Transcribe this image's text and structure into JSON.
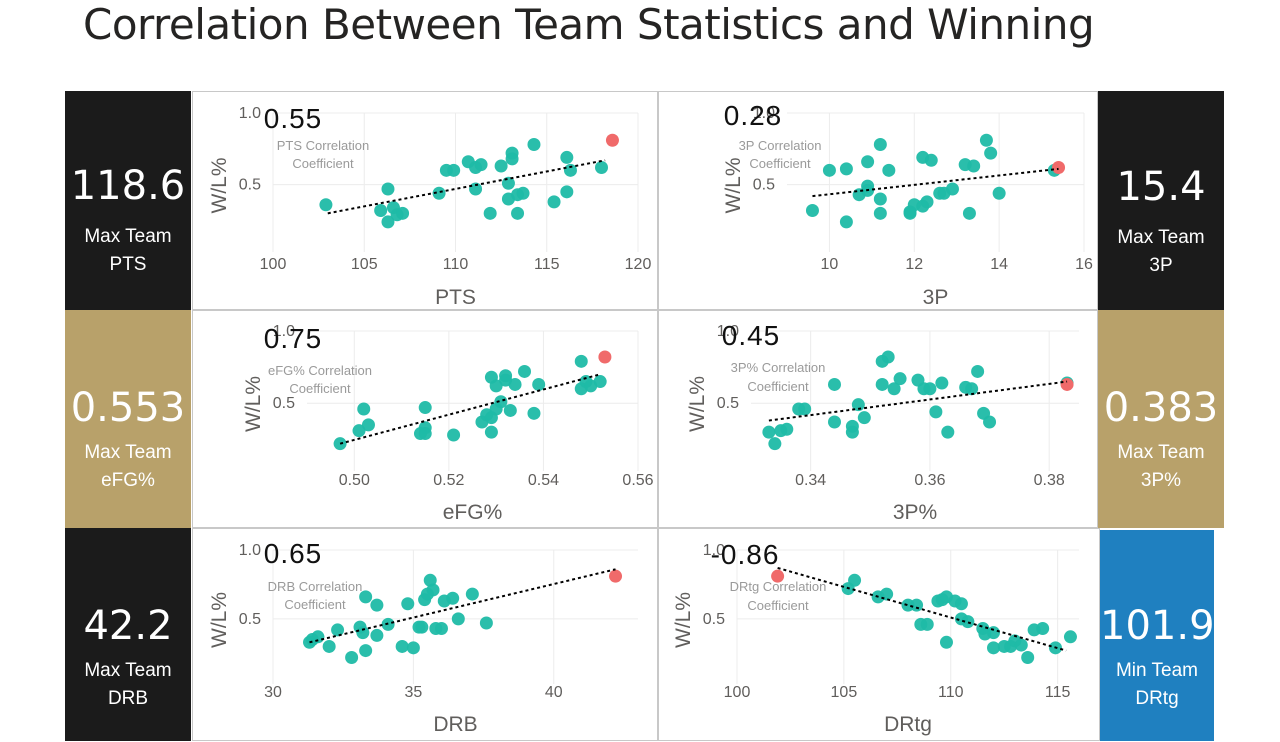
{
  "page_title": "Correlation Between Team Statistics and Winning",
  "kpis": [
    {
      "value": "118.6",
      "line1": "Max Team",
      "line2": "PTS",
      "bg": "#1b1b1b"
    },
    {
      "value": "15.4",
      "line1": "Max Team",
      "line2": "3P",
      "bg": "#1b1b1b"
    },
    {
      "value": "0.553",
      "line1": "Max Team",
      "line2": "eFG%",
      "bg": "#b8a16a"
    },
    {
      "value": "0.383",
      "line1": "Max Team",
      "line2": "3P%",
      "bg": "#b8a16a"
    },
    {
      "value": "42.2",
      "line1": "Max Team",
      "line2": "DRB",
      "bg": "#1b1b1b"
    },
    {
      "value": "101.9",
      "line1": "Min Team",
      "line2": "DRtg",
      "bg": "#1f80c0"
    }
  ],
  "colors": {
    "point": "#1fbaa6",
    "highlight": "#f06a6a",
    "trend": "#000000",
    "grid": "#ececec"
  },
  "chart_data": [
    {
      "type": "scatter",
      "xlabel": "PTS",
      "ylabel": "W/L%",
      "coefficient": "0.55",
      "caption": [
        "PTS Correlation",
        "Coefficient"
      ],
      "xlim": [
        100,
        120
      ],
      "ylim": [
        0.1,
        1.0
      ],
      "xticks": [
        "100",
        "105",
        "110",
        "115",
        "120"
      ],
      "yticks": [
        "0.5",
        "1.0"
      ],
      "ytick_values": [
        0.5,
        1.0
      ],
      "points": [
        [
          102.9,
          0.36
        ],
        [
          105.9,
          0.32
        ],
        [
          106.3,
          0.24
        ],
        [
          106.3,
          0.47
        ],
        [
          106.6,
          0.34
        ],
        [
          106.8,
          0.29
        ],
        [
          107.1,
          0.3
        ],
        [
          109.1,
          0.44
        ],
        [
          109.5,
          0.6
        ],
        [
          109.9,
          0.6
        ],
        [
          110.7,
          0.66
        ],
        [
          111.1,
          0.62
        ],
        [
          111.1,
          0.47
        ],
        [
          111.4,
          0.64
        ],
        [
          111.9,
          0.3
        ],
        [
          112.5,
          0.63
        ],
        [
          112.9,
          0.4
        ],
        [
          112.9,
          0.51
        ],
        [
          113.1,
          0.72
        ],
        [
          113.1,
          0.68
        ],
        [
          113.4,
          0.43
        ],
        [
          113.4,
          0.3
        ],
        [
          113.7,
          0.44
        ],
        [
          114.3,
          0.78
        ],
        [
          115.4,
          0.38
        ],
        [
          116.1,
          0.69
        ],
        [
          116.1,
          0.45
        ],
        [
          116.3,
          0.6
        ],
        [
          118.0,
          0.62
        ]
      ],
      "highlight": [
        [
          118.6,
          0.81
        ]
      ],
      "trend": [
        [
          103,
          0.3
        ],
        [
          118.2,
          0.67
        ]
      ]
    },
    {
      "type": "scatter",
      "xlabel": "3P",
      "ylabel": "W/L%",
      "coefficient": "0.28",
      "caption": [
        "3P Correlation",
        "Coefficient"
      ],
      "xlim": [
        9,
        16
      ],
      "ylim": [
        0.1,
        1.0
      ],
      "xticks": [
        "10",
        "12",
        "14",
        "16"
      ],
      "ytick_values": [
        0.5,
        1.0
      ],
      "yticks": [
        "0.5",
        "1.0"
      ],
      "points": [
        [
          9.6,
          0.32
        ],
        [
          10.0,
          0.6
        ],
        [
          10.4,
          0.24
        ],
        [
          10.4,
          0.61
        ],
        [
          10.7,
          0.43
        ],
        [
          10.9,
          0.66
        ],
        [
          10.9,
          0.46
        ],
        [
          10.9,
          0.49
        ],
        [
          11.2,
          0.78
        ],
        [
          11.2,
          0.4
        ],
        [
          11.2,
          0.3
        ],
        [
          11.4,
          0.6
        ],
        [
          11.9,
          0.3
        ],
        [
          11.9,
          0.31
        ],
        [
          12.0,
          0.36
        ],
        [
          12.2,
          0.69
        ],
        [
          12.2,
          0.35
        ],
        [
          12.3,
          0.38
        ],
        [
          12.4,
          0.67
        ],
        [
          12.6,
          0.44
        ],
        [
          12.7,
          0.44
        ],
        [
          12.9,
          0.47
        ],
        [
          13.2,
          0.64
        ],
        [
          13.3,
          0.3
        ],
        [
          13.4,
          0.63
        ],
        [
          13.7,
          0.81
        ],
        [
          13.8,
          0.72
        ],
        [
          14.0,
          0.44
        ],
        [
          15.3,
          0.6
        ]
      ],
      "highlight": [
        [
          15.4,
          0.62
        ]
      ],
      "trend": [
        [
          9.6,
          0.42
        ],
        [
          15.4,
          0.61
        ]
      ]
    },
    {
      "type": "scatter",
      "xlabel": "eFG%",
      "ylabel": "W/L%",
      "coefficient": "0.75",
      "caption": [
        "eFG% Correlation",
        "Coefficient"
      ],
      "xlim": [
        0.49,
        0.56
      ],
      "ylim": [
        0.1,
        1.0
      ],
      "xticks": [
        "0.50",
        "0.52",
        "0.54",
        "0.56"
      ],
      "ytick_values": [
        0.5,
        1.0
      ],
      "yticks": [
        "0.5",
        "1.0"
      ],
      "points": [
        [
          0.497,
          0.22
        ],
        [
          0.501,
          0.31
        ],
        [
          0.502,
          0.46
        ],
        [
          0.503,
          0.35
        ],
        [
          0.514,
          0.29
        ],
        [
          0.515,
          0.33
        ],
        [
          0.515,
          0.29
        ],
        [
          0.515,
          0.47
        ],
        [
          0.521,
          0.28
        ],
        [
          0.527,
          0.37
        ],
        [
          0.528,
          0.42
        ],
        [
          0.529,
          0.68
        ],
        [
          0.529,
          0.3
        ],
        [
          0.529,
          0.4
        ],
        [
          0.53,
          0.46
        ],
        [
          0.53,
          0.62
        ],
        [
          0.531,
          0.51
        ],
        [
          0.532,
          0.69
        ],
        [
          0.532,
          0.66
        ],
        [
          0.533,
          0.45
        ],
        [
          0.534,
          0.63
        ],
        [
          0.536,
          0.72
        ],
        [
          0.538,
          0.43
        ],
        [
          0.539,
          0.63
        ],
        [
          0.548,
          0.79
        ],
        [
          0.548,
          0.6
        ],
        [
          0.549,
          0.65
        ],
        [
          0.55,
          0.62
        ],
        [
          0.552,
          0.65
        ]
      ],
      "highlight": [
        [
          0.553,
          0.82
        ]
      ],
      "trend": [
        [
          0.497,
          0.22
        ],
        [
          0.552,
          0.7
        ]
      ]
    },
    {
      "type": "scatter",
      "xlabel": "3P%",
      "ylabel": "W/L%",
      "coefficient": "0.45",
      "caption": [
        "3P% Correlation",
        "Coefficient"
      ],
      "xlim": [
        0.33,
        0.385
      ],
      "ylim": [
        0.1,
        1.0
      ],
      "xticks": [
        "0.34",
        "0.36",
        "0.38"
      ],
      "ytick_values": [
        0.5,
        1.0
      ],
      "yticks": [
        "0.5",
        "1.0"
      ],
      "points": [
        [
          0.333,
          0.3
        ],
        [
          0.334,
          0.22
        ],
        [
          0.335,
          0.31
        ],
        [
          0.336,
          0.32
        ],
        [
          0.338,
          0.46
        ],
        [
          0.339,
          0.46
        ],
        [
          0.344,
          0.37
        ],
        [
          0.344,
          0.63
        ],
        [
          0.347,
          0.34
        ],
        [
          0.347,
          0.3
        ],
        [
          0.348,
          0.49
        ],
        [
          0.349,
          0.4
        ],
        [
          0.352,
          0.63
        ],
        [
          0.352,
          0.79
        ],
        [
          0.353,
          0.82
        ],
        [
          0.354,
          0.6
        ],
        [
          0.355,
          0.67
        ],
        [
          0.358,
          0.66
        ],
        [
          0.359,
          0.6
        ],
        [
          0.36,
          0.6
        ],
        [
          0.361,
          0.44
        ],
        [
          0.362,
          0.64
        ],
        [
          0.363,
          0.3
        ],
        [
          0.366,
          0.61
        ],
        [
          0.367,
          0.6
        ],
        [
          0.368,
          0.72
        ],
        [
          0.369,
          0.43
        ],
        [
          0.37,
          0.37
        ],
        [
          0.383,
          0.64
        ]
      ],
      "highlight": [
        [
          0.383,
          0.63
        ]
      ],
      "trend": [
        [
          0.333,
          0.38
        ],
        [
          0.383,
          0.65
        ]
      ]
    },
    {
      "type": "scatter",
      "xlabel": "DRB",
      "ylabel": "W/L%",
      "coefficient": "0.65",
      "caption": [
        "DRB Correlation",
        "Coefficient"
      ],
      "xlim": [
        30,
        43
      ],
      "ylim": [
        0.1,
        1.0
      ],
      "xticks": [
        "30",
        "35",
        "40"
      ],
      "ytick_values": [
        0.5,
        1.0
      ],
      "yticks": [
        "0.5",
        "1.0"
      ],
      "points": [
        [
          31.4,
          0.35
        ],
        [
          31.6,
          0.37
        ],
        [
          32.0,
          0.3
        ],
        [
          32.3,
          0.42
        ],
        [
          32.8,
          0.22
        ],
        [
          33.2,
          0.4
        ],
        [
          33.3,
          0.27
        ],
        [
          33.3,
          0.66
        ],
        [
          33.7,
          0.38
        ],
        [
          33.7,
          0.6
        ],
        [
          34.1,
          0.46
        ],
        [
          34.6,
          0.3
        ],
        [
          34.8,
          0.61
        ],
        [
          35.0,
          0.29
        ],
        [
          35.3,
          0.44
        ],
        [
          35.4,
          0.64
        ],
        [
          35.5,
          0.68
        ],
        [
          35.6,
          0.78
        ],
        [
          35.7,
          0.71
        ],
        [
          35.8,
          0.43
        ],
        [
          36.0,
          0.43
        ],
        [
          36.1,
          0.63
        ],
        [
          36.4,
          0.65
        ],
        [
          36.6,
          0.5
        ],
        [
          37.1,
          0.68
        ],
        [
          37.6,
          0.47
        ],
        [
          31.3,
          0.33
        ],
        [
          33.1,
          0.44
        ],
        [
          35.2,
          0.44
        ]
      ],
      "highlight": [
        [
          42.2,
          0.81
        ]
      ],
      "trend": [
        [
          31.3,
          0.33
        ],
        [
          42.2,
          0.86
        ]
      ]
    },
    {
      "type": "scatter",
      "xlabel": "DRtg",
      "ylabel": "W/L%",
      "coefficient": "-0.86",
      "caption": [
        "DRtg Correlation",
        "Coefficient"
      ],
      "xlim": [
        100,
        116
      ],
      "ylim": [
        0.1,
        1.0
      ],
      "xticks": [
        "100",
        "105",
        "110",
        "115"
      ],
      "ytick_values": [
        0.5,
        1.0
      ],
      "yticks": [
        "0.5",
        "1.0"
      ],
      "points": [
        [
          105.2,
          0.72
        ],
        [
          105.5,
          0.78
        ],
        [
          106.6,
          0.66
        ],
        [
          107.0,
          0.68
        ],
        [
          108.0,
          0.6
        ],
        [
          108.4,
          0.6
        ],
        [
          108.6,
          0.46
        ],
        [
          108.9,
          0.46
        ],
        [
          109.4,
          0.63
        ],
        [
          109.6,
          0.64
        ],
        [
          109.8,
          0.66
        ],
        [
          109.8,
          0.33
        ],
        [
          110.2,
          0.63
        ],
        [
          110.5,
          0.61
        ],
        [
          110.5,
          0.5
        ],
        [
          110.8,
          0.48
        ],
        [
          111.5,
          0.43
        ],
        [
          111.6,
          0.39
        ],
        [
          112.0,
          0.4
        ],
        [
          112.0,
          0.29
        ],
        [
          112.5,
          0.3
        ],
        [
          112.8,
          0.3
        ],
        [
          113.0,
          0.34
        ],
        [
          113.3,
          0.31
        ],
        [
          113.6,
          0.22
        ],
        [
          113.9,
          0.42
        ],
        [
          114.3,
          0.43
        ],
        [
          114.9,
          0.29
        ],
        [
          115.6,
          0.37
        ]
      ],
      "highlight": [
        [
          101.9,
          0.81
        ]
      ],
      "trend": [
        [
          101.9,
          0.87
        ],
        [
          115.4,
          0.27
        ]
      ]
    }
  ]
}
